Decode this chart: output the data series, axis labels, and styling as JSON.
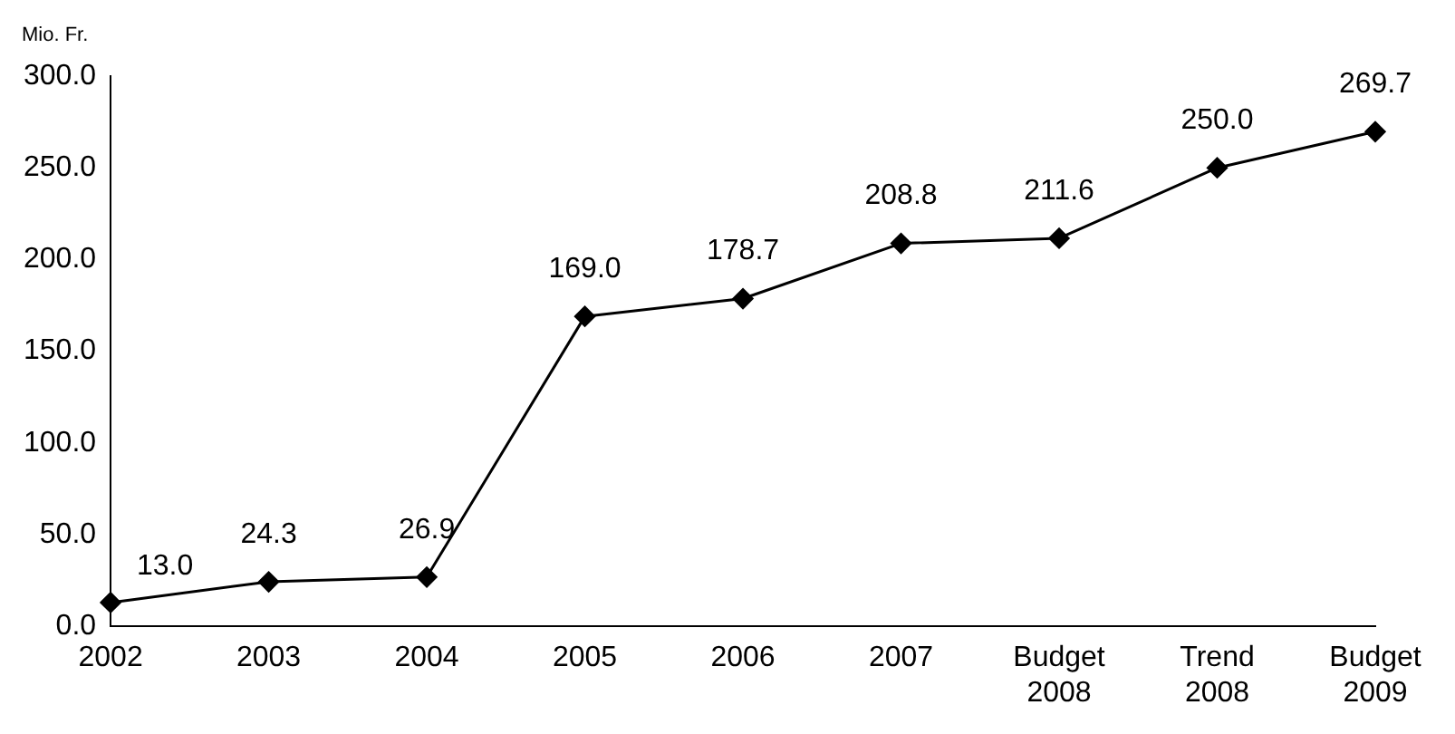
{
  "chart_data": {
    "type": "line",
    "ylabel": "Mio. Fr.",
    "categories": [
      "2002",
      "2003",
      "2004",
      "2005",
      "2006",
      "2007",
      "Budget 2008",
      "Trend 2008",
      "Budget 2009"
    ],
    "series": [
      {
        "color": "#000000",
        "values": [
          13.0,
          24.3,
          26.9,
          169.0,
          178.7,
          208.8,
          211.6,
          250.0,
          269.7
        ],
        "value_labels": [
          "13.0",
          "24.3",
          "26.9",
          "169.0",
          "178.7",
          "208.8",
          "211.6",
          "250.0",
          "269.7"
        ]
      }
    ],
    "ylim": [
      0,
      300
    ],
    "yticks": [
      {
        "value": 0,
        "label": "0.0"
      },
      {
        "value": 50,
        "label": "50.0"
      },
      {
        "value": 100,
        "label": "100.0"
      },
      {
        "value": 150,
        "label": "150.0"
      },
      {
        "value": 200,
        "label": "200.0"
      },
      {
        "value": 250,
        "label": "250.0"
      },
      {
        "value": 300,
        "label": "300.0"
      }
    ],
    "grid": false,
    "legend": false,
    "marker": "diamond",
    "line_style": "solid"
  }
}
